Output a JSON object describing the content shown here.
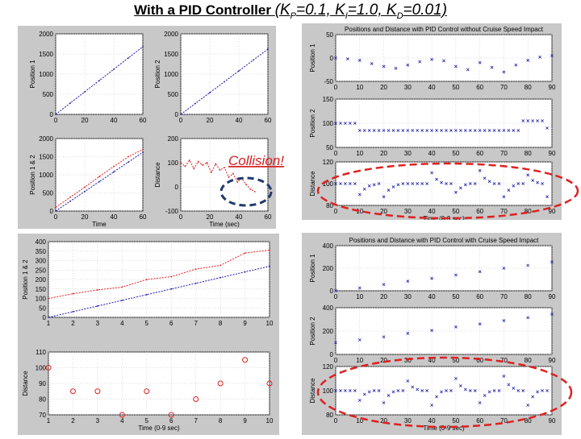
{
  "title": {
    "prefix": "With a PID Controller ",
    "gains_open": "(K",
    "p_sub": "P",
    "p_val": "=0.1, K",
    "i_sub": "I",
    "i_val": "=1.0, K",
    "d_sub": "D",
    "d_val": "=0.01)"
  },
  "annotation": {
    "text": "Collision!",
    "color": "#d62020"
  },
  "colors": {
    "red_series": "#e02020",
    "blue_series": "#1a1aa8",
    "panel_bg": "#c8c8c8",
    "ellipse_red": "#e02020",
    "ellipse_blue": "#1f3a6e"
  },
  "chart_data": [
    {
      "id": "tl-position1",
      "type": "line",
      "ylabel": "Position 1",
      "xlabel": "",
      "xlim": [
        0,
        60
      ],
      "ylim": [
        0,
        2000
      ],
      "xticks": [
        "0",
        "20",
        "40",
        "60"
      ],
      "yticks": [
        "0",
        "500",
        "1000",
        "1500",
        "2000"
      ],
      "series": [
        {
          "color": "#1a1aa8",
          "x": [
            0,
            10,
            20,
            30,
            40,
            50,
            60
          ],
          "y": [
            0,
            280,
            560,
            840,
            1120,
            1400,
            1680
          ]
        }
      ]
    },
    {
      "id": "tl-position2",
      "type": "line",
      "ylabel": "Position 2",
      "xlabel": "",
      "xlim": [
        0,
        60
      ],
      "ylim": [
        0,
        2000
      ],
      "xticks": [
        "0",
        "20",
        "40",
        "60"
      ],
      "yticks": [
        "0",
        "500",
        "1000",
        "1500",
        "2000"
      ],
      "series": [
        {
          "color": "#1a1aa8",
          "x": [
            0,
            10,
            20,
            30,
            40,
            50,
            60
          ],
          "y": [
            0,
            270,
            540,
            810,
            1080,
            1350,
            1620
          ]
        }
      ]
    },
    {
      "id": "tl-position12",
      "type": "line",
      "ylabel": "Position 1 & 2",
      "xlabel": "Time",
      "xlim": [
        0,
        60
      ],
      "ylim": [
        0,
        2000
      ],
      "xticks": [
        "0",
        "20",
        "40",
        "60"
      ],
      "yticks": [
        "0",
        "500",
        "1000",
        "1500",
        "2000"
      ],
      "series": [
        {
          "color": "#e02020",
          "x": [
            0,
            10,
            20,
            30,
            40,
            50,
            60
          ],
          "y": [
            100,
            380,
            660,
            950,
            1230,
            1500,
            1700
          ]
        },
        {
          "color": "#1a1aa8",
          "x": [
            0,
            10,
            20,
            30,
            40,
            50,
            60
          ],
          "y": [
            0,
            270,
            540,
            810,
            1080,
            1350,
            1620
          ]
        }
      ]
    },
    {
      "id": "tl-distance",
      "type": "line",
      "ylabel": "Distance",
      "xlabel": "Time (sec)",
      "xlim": [
        0,
        60
      ],
      "ylim": [
        -100,
        200
      ],
      "xticks": [
        "0",
        "20",
        "40",
        "60"
      ],
      "yticks": [
        "-100",
        "0",
        "100",
        "200"
      ],
      "series": [
        {
          "color": "#e02020",
          "x": [
            0,
            3,
            6,
            9,
            12,
            15,
            18,
            21,
            24,
            27,
            30,
            33,
            36,
            39,
            42,
            45,
            48,
            51
          ],
          "y": [
            100,
            85,
            110,
            75,
            105,
            90,
            100,
            60,
            95,
            70,
            80,
            40,
            55,
            20,
            35,
            10,
            -10,
            -20
          ]
        }
      ]
    },
    {
      "id": "tr-position1",
      "type": "scatter",
      "title": "Positions and Distance with PID Control without Cruise Speed Impact",
      "ylabel": "Position 1",
      "xlabel": "",
      "xlim": [
        0,
        90
      ],
      "ylim": [
        -50,
        50
      ],
      "xticks": [
        "0",
        "10",
        "20",
        "30",
        "40",
        "50",
        "60",
        "70",
        "80",
        "90"
      ],
      "yticks": [
        "-50",
        "0",
        "50"
      ],
      "series": [
        {
          "color": "#1a1aa8",
          "x": [
            0,
            5,
            10,
            15,
            20,
            25,
            30,
            35,
            40,
            45,
            50,
            55,
            60,
            65,
            70,
            75,
            80,
            85,
            90
          ],
          "y": [
            0,
            -2,
            -5,
            -12,
            -18,
            -22,
            -15,
            -8,
            -3,
            -6,
            -18,
            -25,
            -10,
            -20,
            -30,
            -15,
            -5,
            2,
            5
          ]
        }
      ]
    },
    {
      "id": "tr-position2",
      "type": "scatter",
      "ylabel": "Position 2",
      "xlabel": "",
      "xlim": [
        0,
        90
      ],
      "ylim": [
        50,
        150
      ],
      "xticks": [
        "0",
        "10",
        "20",
        "30",
        "40",
        "50",
        "60",
        "70",
        "80",
        "90"
      ],
      "yticks": [
        "50",
        "100",
        "150"
      ],
      "series": [
        {
          "color": "#1a1aa8",
          "x": [
            0,
            2,
            4,
            6,
            8,
            10,
            12,
            14,
            16,
            18,
            20,
            22,
            24,
            26,
            28,
            30,
            32,
            34,
            36,
            38,
            40,
            42,
            44,
            46,
            48,
            50,
            52,
            54,
            56,
            58,
            60,
            62,
            64,
            66,
            68,
            70,
            72,
            74,
            76,
            78,
            80,
            82,
            84,
            86,
            88
          ],
          "y": [
            100,
            100,
            100,
            100,
            100,
            85,
            85,
            85,
            85,
            85,
            85,
            85,
            85,
            85,
            85,
            85,
            85,
            85,
            85,
            85,
            85,
            85,
            85,
            85,
            85,
            85,
            85,
            85,
            85,
            85,
            85,
            85,
            85,
            85,
            85,
            85,
            85,
            85,
            85,
            105,
            105,
            105,
            105,
            105,
            90
          ]
        }
      ]
    },
    {
      "id": "tr-distance",
      "type": "scatter",
      "ylabel": "Distance",
      "xlabel": "Time (0-9 sec)",
      "xlim": [
        0,
        90
      ],
      "ylim": [
        80,
        120
      ],
      "xticks": [
        "0",
        "10",
        "20",
        "30",
        "40",
        "50",
        "60",
        "70",
        "80",
        "90"
      ],
      "yticks": [
        "80",
        "100",
        "120"
      ],
      "series": [
        {
          "color": "#1a1aa8",
          "x": [
            0,
            2,
            4,
            6,
            8,
            10,
            12,
            14,
            16,
            18,
            20,
            22,
            24,
            26,
            28,
            30,
            32,
            34,
            36,
            38,
            40,
            42,
            44,
            46,
            48,
            50,
            52,
            54,
            56,
            58,
            60,
            62,
            64,
            66,
            68,
            70,
            72,
            74,
            76,
            78,
            80,
            82,
            84,
            86,
            88
          ],
          "y": [
            100,
            100,
            100,
            100,
            100,
            90,
            95,
            98,
            99,
            100,
            88,
            94,
            97,
            99,
            100,
            100,
            100,
            100,
            100,
            100,
            110,
            104,
            101,
            100,
            100,
            92,
            96,
            99,
            100,
            100,
            112,
            105,
            102,
            100,
            100,
            88,
            94,
            98,
            100,
            100,
            108,
            103,
            101,
            100,
            88
          ]
        }
      ]
    },
    {
      "id": "bl-position12",
      "type": "line",
      "ylabel": "Position 1 & 2",
      "xlabel": "",
      "xlim": [
        1,
        10
      ],
      "ylim": [
        0,
        400
      ],
      "xticks": [
        "1",
        "2",
        "3",
        "4",
        "5",
        "6",
        "7",
        "8",
        "9",
        "10"
      ],
      "yticks": [
        "0",
        "50",
        "100",
        "150",
        "200",
        "250",
        "300",
        "350",
        "400"
      ],
      "series": [
        {
          "color": "#e02020",
          "x": [
            1,
            2,
            3,
            4,
            5,
            6,
            7,
            8,
            9,
            10
          ],
          "y": [
            100,
            125,
            145,
            160,
            200,
            215,
            255,
            275,
            340,
            355
          ]
        },
        {
          "color": "#1a1aa8",
          "x": [
            1,
            2,
            3,
            4,
            5,
            6,
            7,
            8,
            9,
            10
          ],
          "y": [
            0,
            30,
            60,
            90,
            120,
            150,
            180,
            210,
            240,
            270
          ]
        }
      ]
    },
    {
      "id": "bl-distance",
      "type": "scatter",
      "ylabel": "Distance",
      "xlabel": "Time (0-9 sec)",
      "xlim": [
        1,
        10
      ],
      "ylim": [
        70,
        110
      ],
      "xticks": [
        "1",
        "2",
        "3",
        "4",
        "5",
        "6",
        "7",
        "8",
        "9",
        "10"
      ],
      "yticks": [
        "70",
        "80",
        "90",
        "100",
        "110"
      ],
      "series": [
        {
          "color": "#e02020",
          "marker": "o",
          "x": [
            1,
            2,
            3,
            4,
            5,
            6,
            7,
            8,
            9,
            10
          ],
          "y": [
            100,
            85,
            85,
            70,
            85,
            70,
            80,
            90,
            105,
            90
          ]
        }
      ]
    },
    {
      "id": "br-position1",
      "type": "scatter",
      "title": "Positions and Distance with PID Control with Cruise Speed Impact",
      "ylabel": "Position 1",
      "xlabel": "",
      "xlim": [
        0,
        90
      ],
      "ylim": [
        0,
        400
      ],
      "xticks": [
        "0",
        "10",
        "20",
        "30",
        "40",
        "50",
        "60",
        "70",
        "80",
        "90"
      ],
      "yticks": [
        "0",
        "200",
        "400"
      ],
      "series": [
        {
          "color": "#1a1aa8",
          "x": [
            0,
            10,
            20,
            30,
            40,
            50,
            60,
            70,
            80,
            90
          ],
          "y": [
            0,
            25,
            55,
            85,
            110,
            140,
            170,
            200,
            225,
            255
          ]
        }
      ]
    },
    {
      "id": "br-position2",
      "type": "scatter",
      "ylabel": "Position 2",
      "xlabel": "",
      "xlim": [
        0,
        90
      ],
      "ylim": [
        0,
        400
      ],
      "xticks": [
        "0",
        "10",
        "20",
        "30",
        "40",
        "50",
        "60",
        "70",
        "80",
        "90"
      ],
      "yticks": [
        "0",
        "200",
        "400"
      ],
      "series": [
        {
          "color": "#1a1aa8",
          "x": [
            0,
            10,
            20,
            30,
            40,
            50,
            60,
            70,
            80,
            90
          ],
          "y": [
            100,
            125,
            150,
            180,
            205,
            235,
            260,
            290,
            315,
            345
          ]
        }
      ]
    },
    {
      "id": "br-distance",
      "type": "scatter",
      "ylabel": "Distance",
      "xlabel": "Time (0-9 sec)",
      "xlim": [
        0,
        90
      ],
      "ylim": [
        80,
        120
      ],
      "xticks": [
        "0",
        "10",
        "20",
        "30",
        "40",
        "50",
        "60",
        "70",
        "80",
        "90"
      ],
      "yticks": [
        "80",
        "100",
        "120"
      ],
      "series": [
        {
          "color": "#1a1aa8",
          "x": [
            0,
            2,
            4,
            6,
            8,
            10,
            12,
            14,
            16,
            18,
            20,
            22,
            24,
            26,
            28,
            30,
            32,
            34,
            36,
            38,
            40,
            42,
            44,
            46,
            48,
            50,
            52,
            54,
            56,
            58,
            60,
            62,
            64,
            66,
            68,
            70,
            72,
            74,
            76,
            78,
            80,
            82,
            84,
            86,
            88
          ],
          "y": [
            100,
            100,
            100,
            100,
            100,
            92,
            97,
            99,
            100,
            100,
            90,
            96,
            99,
            100,
            100,
            108,
            103,
            101,
            100,
            100,
            88,
            95,
            99,
            100,
            100,
            110,
            104,
            101,
            100,
            100,
            90,
            96,
            99,
            100,
            100,
            112,
            105,
            102,
            100,
            100,
            88,
            95,
            99,
            100,
            100
          ]
        }
      ]
    }
  ]
}
